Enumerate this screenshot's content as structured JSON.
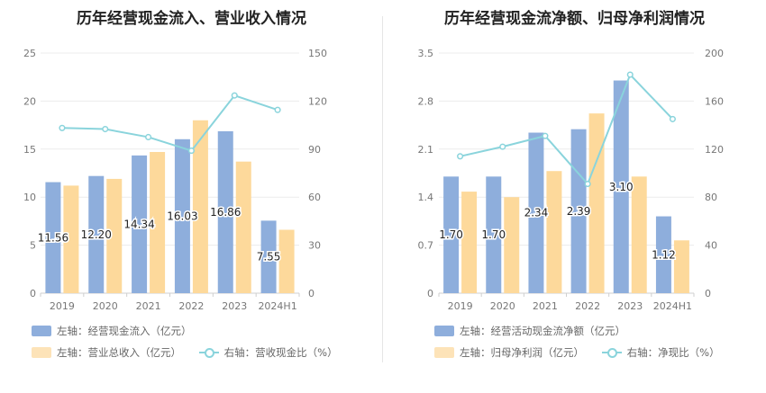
{
  "chart_data": [
    {
      "type": "bar",
      "title": "历年经营现金流入、营业收入情况",
      "categories": [
        "2019",
        "2020",
        "2021",
        "2022",
        "2023",
        "2024H1"
      ],
      "left_axis": {
        "min": 0,
        "max": 25,
        "ticks": [
          "0",
          "5",
          "10",
          "15",
          "20",
          "25"
        ]
      },
      "right_axis": {
        "min": 0,
        "max": 150,
        "ticks": [
          "0",
          "30",
          "60",
          "90",
          "120",
          "150"
        ]
      },
      "series": [
        {
          "name": "左轴：经营现金流入（亿元）",
          "axis": "left",
          "color": "#8eaedc",
          "values": [
            11.56,
            12.2,
            14.34,
            16.03,
            16.86,
            7.55
          ],
          "labels": [
            "11.56",
            "12.20",
            "14.34",
            "16.03",
            "16.86",
            "7.55"
          ]
        },
        {
          "name": "左轴：营业总收入（亿元）",
          "axis": "left",
          "color": "#fdd99b",
          "values": [
            11.2,
            11.9,
            14.7,
            18.0,
            13.7,
            6.6
          ]
        },
        {
          "name": "右轴：营收现金比（%）",
          "axis": "right",
          "type": "line",
          "color": "#8ad4dc",
          "values": [
            103.2,
            102.5,
            97.5,
            89.0,
            123.5,
            114.5
          ]
        }
      ],
      "legend": [
        "左轴：经营现金流入（亿元）",
        "左轴：营业总收入（亿元）",
        "右轴：营收现金比（%）"
      ]
    },
    {
      "type": "bar",
      "title": "历年经营现金流净额、归母净利润情况",
      "categories": [
        "2019",
        "2020",
        "2021",
        "2022",
        "2023",
        "2024H1"
      ],
      "left_axis": {
        "min": 0,
        "max": 3.5,
        "ticks": [
          "0",
          "0.7",
          "1.4",
          "2.1",
          "2.8",
          "3.5"
        ]
      },
      "right_axis": {
        "min": 0,
        "max": 200,
        "ticks": [
          "0",
          "40",
          "80",
          "120",
          "160",
          "200"
        ]
      },
      "series": [
        {
          "name": "左轴：经营活动现金流净额（亿元）",
          "axis": "left",
          "color": "#8eaedc",
          "values": [
            1.7,
            1.7,
            2.34,
            2.39,
            3.1,
            1.12
          ],
          "labels": [
            "1.70",
            "1.70",
            "2.34",
            "2.39",
            "3.10",
            "1.12"
          ]
        },
        {
          "name": "左轴：归母净利润（亿元）",
          "axis": "left",
          "color": "#fdd99b",
          "values": [
            1.48,
            1.4,
            1.78,
            2.62,
            1.7,
            0.77
          ]
        },
        {
          "name": "右轴：净现比（%）",
          "axis": "right",
          "type": "line",
          "color": "#8ad4dc",
          "values": [
            114,
            122,
            131,
            91,
            182,
            145
          ]
        }
      ],
      "legend": [
        "左轴：经营活动现金流净额（亿元）",
        "左轴：归母净利润（亿元）",
        "右轴：净现比（%）"
      ]
    }
  ]
}
